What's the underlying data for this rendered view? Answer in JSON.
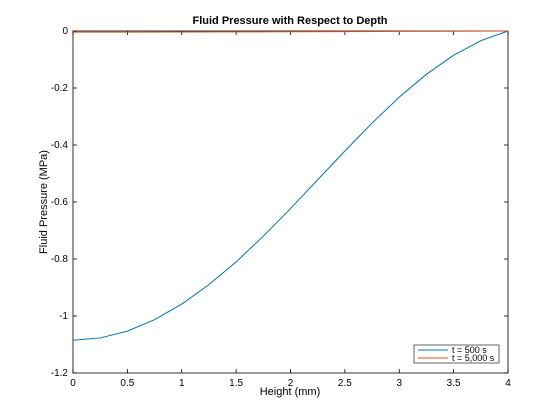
{
  "chart_data": {
    "type": "line",
    "title": "Fluid Pressure with Respect to Depth",
    "xlabel": "Height (mm)",
    "ylabel": "Fluid Pressure (MPa)",
    "xlim": [
      0,
      4
    ],
    "ylim": [
      -1.2,
      0
    ],
    "xticks": [
      0,
      0.5,
      1,
      1.5,
      2,
      2.5,
      3,
      3.5,
      4
    ],
    "xtick_labels": [
      "0",
      "0.5",
      "1",
      "1.5",
      "2",
      "2.5",
      "3",
      "3.5",
      "4"
    ],
    "yticks": [
      0,
      -0.2,
      -0.4,
      -0.6,
      -0.8,
      -1,
      -1.2
    ],
    "ytick_labels": [
      "0",
      "-0.2",
      "-0.4",
      "-0.6",
      "-0.8",
      "-1",
      "-1.2"
    ],
    "grid": false,
    "legend_position": "bottom-right",
    "series": [
      {
        "name": "t = 500 s",
        "color": "#0072BD",
        "x": [
          0,
          0.25,
          0.5,
          0.75,
          1,
          1.25,
          1.5,
          1.75,
          2,
          2.25,
          2.5,
          2.75,
          3,
          3.25,
          3.5,
          3.75,
          4
        ],
        "y": [
          -1.085,
          -1.077,
          -1.053,
          -1.013,
          -0.958,
          -0.89,
          -0.81,
          -0.72,
          -0.623,
          -0.522,
          -0.421,
          -0.323,
          -0.232,
          -0.152,
          -0.085,
          -0.034,
          0
        ]
      },
      {
        "name": "t = 5,000 s",
        "color": "#D95319",
        "x": [
          0,
          0.5,
          1,
          1.5,
          2,
          2.5,
          3,
          3.5,
          4
        ],
        "y": [
          -0.004,
          -0.0039,
          -0.0036,
          -0.0032,
          -0.0027,
          -0.0021,
          -0.0014,
          -0.0007,
          0
        ]
      }
    ]
  }
}
